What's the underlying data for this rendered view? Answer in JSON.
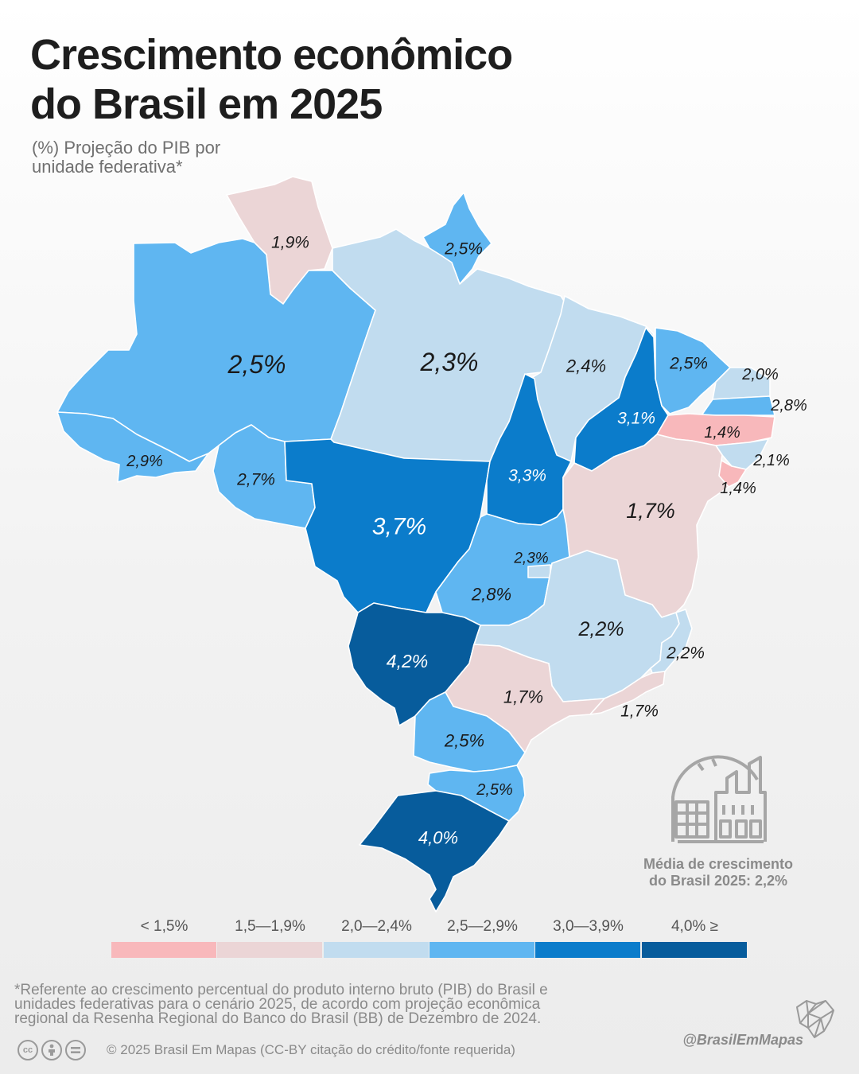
{
  "title": {
    "line1": "Crescimento econômico",
    "line2": "do Brasil em 2025"
  },
  "subtitle": {
    "line1": "(%) Projeção do PIB por",
    "line2": "unidade federativa*"
  },
  "colors": {
    "lt_1_5": "#f8b8bb",
    "r_1_5_1_9": "#ebd5d6",
    "r_2_0_2_4": "#c1dcef",
    "r_2_5_2_9": "#5fb6f1",
    "r_3_0_3_9": "#0b7ccb",
    "gte_4_0": "#075c9c",
    "text_light": "#ffffff",
    "text_dark": "#1a1a1a"
  },
  "map": {
    "states": [
      {
        "id": "RR",
        "label": "1,9%",
        "value": 1.9,
        "bin": "r_1_5_1_9"
      },
      {
        "id": "AP",
        "label": "2,5%",
        "value": 2.5,
        "bin": "r_2_5_2_9"
      },
      {
        "id": "AM",
        "label": "2,5%",
        "value": 2.5,
        "bin": "r_2_5_2_9"
      },
      {
        "id": "PA",
        "label": "2,3%",
        "value": 2.3,
        "bin": "r_2_0_2_4"
      },
      {
        "id": "MA",
        "label": "2,4%",
        "value": 2.4,
        "bin": "r_2_0_2_4"
      },
      {
        "id": "PI",
        "label": "3,1%",
        "value": 3.1,
        "bin": "r_3_0_3_9"
      },
      {
        "id": "CE",
        "label": "2,5%",
        "value": 2.5,
        "bin": "r_2_5_2_9"
      },
      {
        "id": "RN",
        "label": "2,0%",
        "value": 2.0,
        "bin": "r_2_0_2_4"
      },
      {
        "id": "PB",
        "label": "2,8%",
        "value": 2.8,
        "bin": "r_2_5_2_9"
      },
      {
        "id": "PE",
        "label": "1,4%",
        "value": 1.4,
        "bin": "lt_1_5"
      },
      {
        "id": "AL",
        "label": "2,1%",
        "value": 2.1,
        "bin": "r_2_0_2_4"
      },
      {
        "id": "SE",
        "label": "1,4%",
        "value": 1.4,
        "bin": "lt_1_5"
      },
      {
        "id": "AC",
        "label": "2,9%",
        "value": 2.9,
        "bin": "r_2_5_2_9"
      },
      {
        "id": "RO",
        "label": "2,7%",
        "value": 2.7,
        "bin": "r_2_5_2_9"
      },
      {
        "id": "MT",
        "label": "3,7%",
        "value": 3.7,
        "bin": "r_3_0_3_9"
      },
      {
        "id": "TO",
        "label": "3,3%",
        "value": 3.3,
        "bin": "r_3_0_3_9"
      },
      {
        "id": "BA",
        "label": "1,7%",
        "value": 1.7,
        "bin": "r_1_5_1_9"
      },
      {
        "id": "GO",
        "label": "2,8%",
        "value": 2.8,
        "bin": "r_2_5_2_9"
      },
      {
        "id": "DF",
        "label": "2,3%",
        "value": 2.3,
        "bin": "r_2_0_2_4"
      },
      {
        "id": "MG",
        "label": "2,2%",
        "value": 2.2,
        "bin": "r_2_0_2_4"
      },
      {
        "id": "ES",
        "label": "2,2%",
        "value": 2.2,
        "bin": "r_2_0_2_4"
      },
      {
        "id": "MS",
        "label": "4,2%",
        "value": 4.2,
        "bin": "gte_4_0"
      },
      {
        "id": "SP",
        "label": "1,7%",
        "value": 1.7,
        "bin": "r_1_5_1_9"
      },
      {
        "id": "RJ",
        "label": "1,7%",
        "value": 1.7,
        "bin": "r_1_5_1_9"
      },
      {
        "id": "PR",
        "label": "2,5%",
        "value": 2.5,
        "bin": "r_2_5_2_9"
      },
      {
        "id": "SC",
        "label": "2,5%",
        "value": 2.5,
        "bin": "r_2_5_2_9"
      },
      {
        "id": "RS",
        "label": "4,0%",
        "value": 4.0,
        "bin": "gte_4_0"
      }
    ]
  },
  "average": {
    "icon": "factory-icon",
    "line1": "Média de crescimento",
    "line2": "do Brasil 2025: 2,2%"
  },
  "legend": {
    "items": [
      {
        "label": "< 1,5%",
        "bin": "lt_1_5"
      },
      {
        "label": "1,5—1,9%",
        "bin": "r_1_5_1_9"
      },
      {
        "label": "2,0—2,4%",
        "bin": "r_2_0_2_4"
      },
      {
        "label": "2,5—2,9%",
        "bin": "r_2_5_2_9"
      },
      {
        "label": "3,0—3,9%",
        "bin": "r_3_0_3_9"
      },
      {
        "label": "4,0% ≥",
        "bin": "gte_4_0"
      }
    ]
  },
  "footnote": {
    "line1": "*Referente ao crescimento percentual do produto interno bruto (PIB) do Brasil e",
    "line2": "unidades federativas para o cenário 2025, de acordo com projeção econômica",
    "line3": "regional da Resenha Regional do Banco do Brasil (BB) de Dezembro de 2024."
  },
  "credit": {
    "text": "© 2025  Brasil Em Mapas (CC-BY citação do crédito/fonte requerida)",
    "icons": [
      "cc-icon",
      "attribution-icon",
      "equal-icon"
    ]
  },
  "handle": "@BrasilEmMapas",
  "brand_icon": "brazil-map-icon"
}
